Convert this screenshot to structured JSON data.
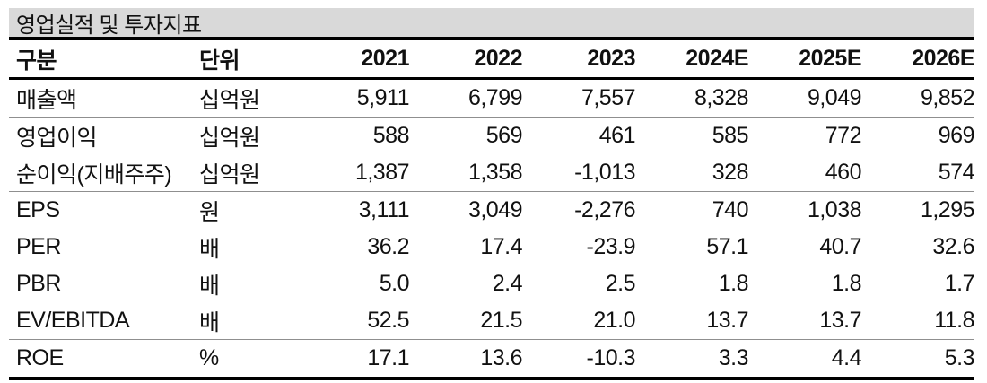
{
  "title": "영업실적 및 투자지표",
  "table": {
    "headers": [
      "구분",
      "단위",
      "2021",
      "2022",
      "2023",
      "2024E",
      "2025E",
      "2026E"
    ],
    "rows": [
      {
        "label": "매출액",
        "unit": "십억원",
        "values": [
          "5,911",
          "6,799",
          "7,557",
          "8,328",
          "9,049",
          "9,852"
        ]
      },
      {
        "label": "영업이익",
        "unit": "십억원",
        "values": [
          "588",
          "569",
          "461",
          "585",
          "772",
          "969"
        ]
      },
      {
        "label": "순이익(지배주주)",
        "unit": "십억원",
        "values": [
          "1,387",
          "1,358",
          "-1,013",
          "328",
          "460",
          "574"
        ]
      },
      {
        "label": "EPS",
        "unit": "원",
        "values": [
          "3,111",
          "3,049",
          "-2,276",
          "740",
          "1,038",
          "1,295"
        ]
      },
      {
        "label": "PER",
        "unit": "배",
        "values": [
          "36.2",
          "17.4",
          "-23.9",
          "57.1",
          "40.7",
          "32.6"
        ]
      },
      {
        "label": "PBR",
        "unit": "배",
        "values": [
          "5.0",
          "2.4",
          "2.5",
          "1.8",
          "1.8",
          "1.7"
        ]
      },
      {
        "label": "EV/EBITDA",
        "unit": "배",
        "values": [
          "52.5",
          "21.5",
          "21.0",
          "13.7",
          "13.7",
          "11.8"
        ]
      },
      {
        "label": "ROE",
        "unit": "%",
        "values": [
          "17.1",
          "13.6",
          "-10.3",
          "3.3",
          "4.4",
          "5.3"
        ]
      }
    ]
  },
  "colors": {
    "title_bg": "#d9d9d9",
    "rule_strong": "#000000",
    "rule_light": "#8f8f8f",
    "text": "#111111"
  }
}
